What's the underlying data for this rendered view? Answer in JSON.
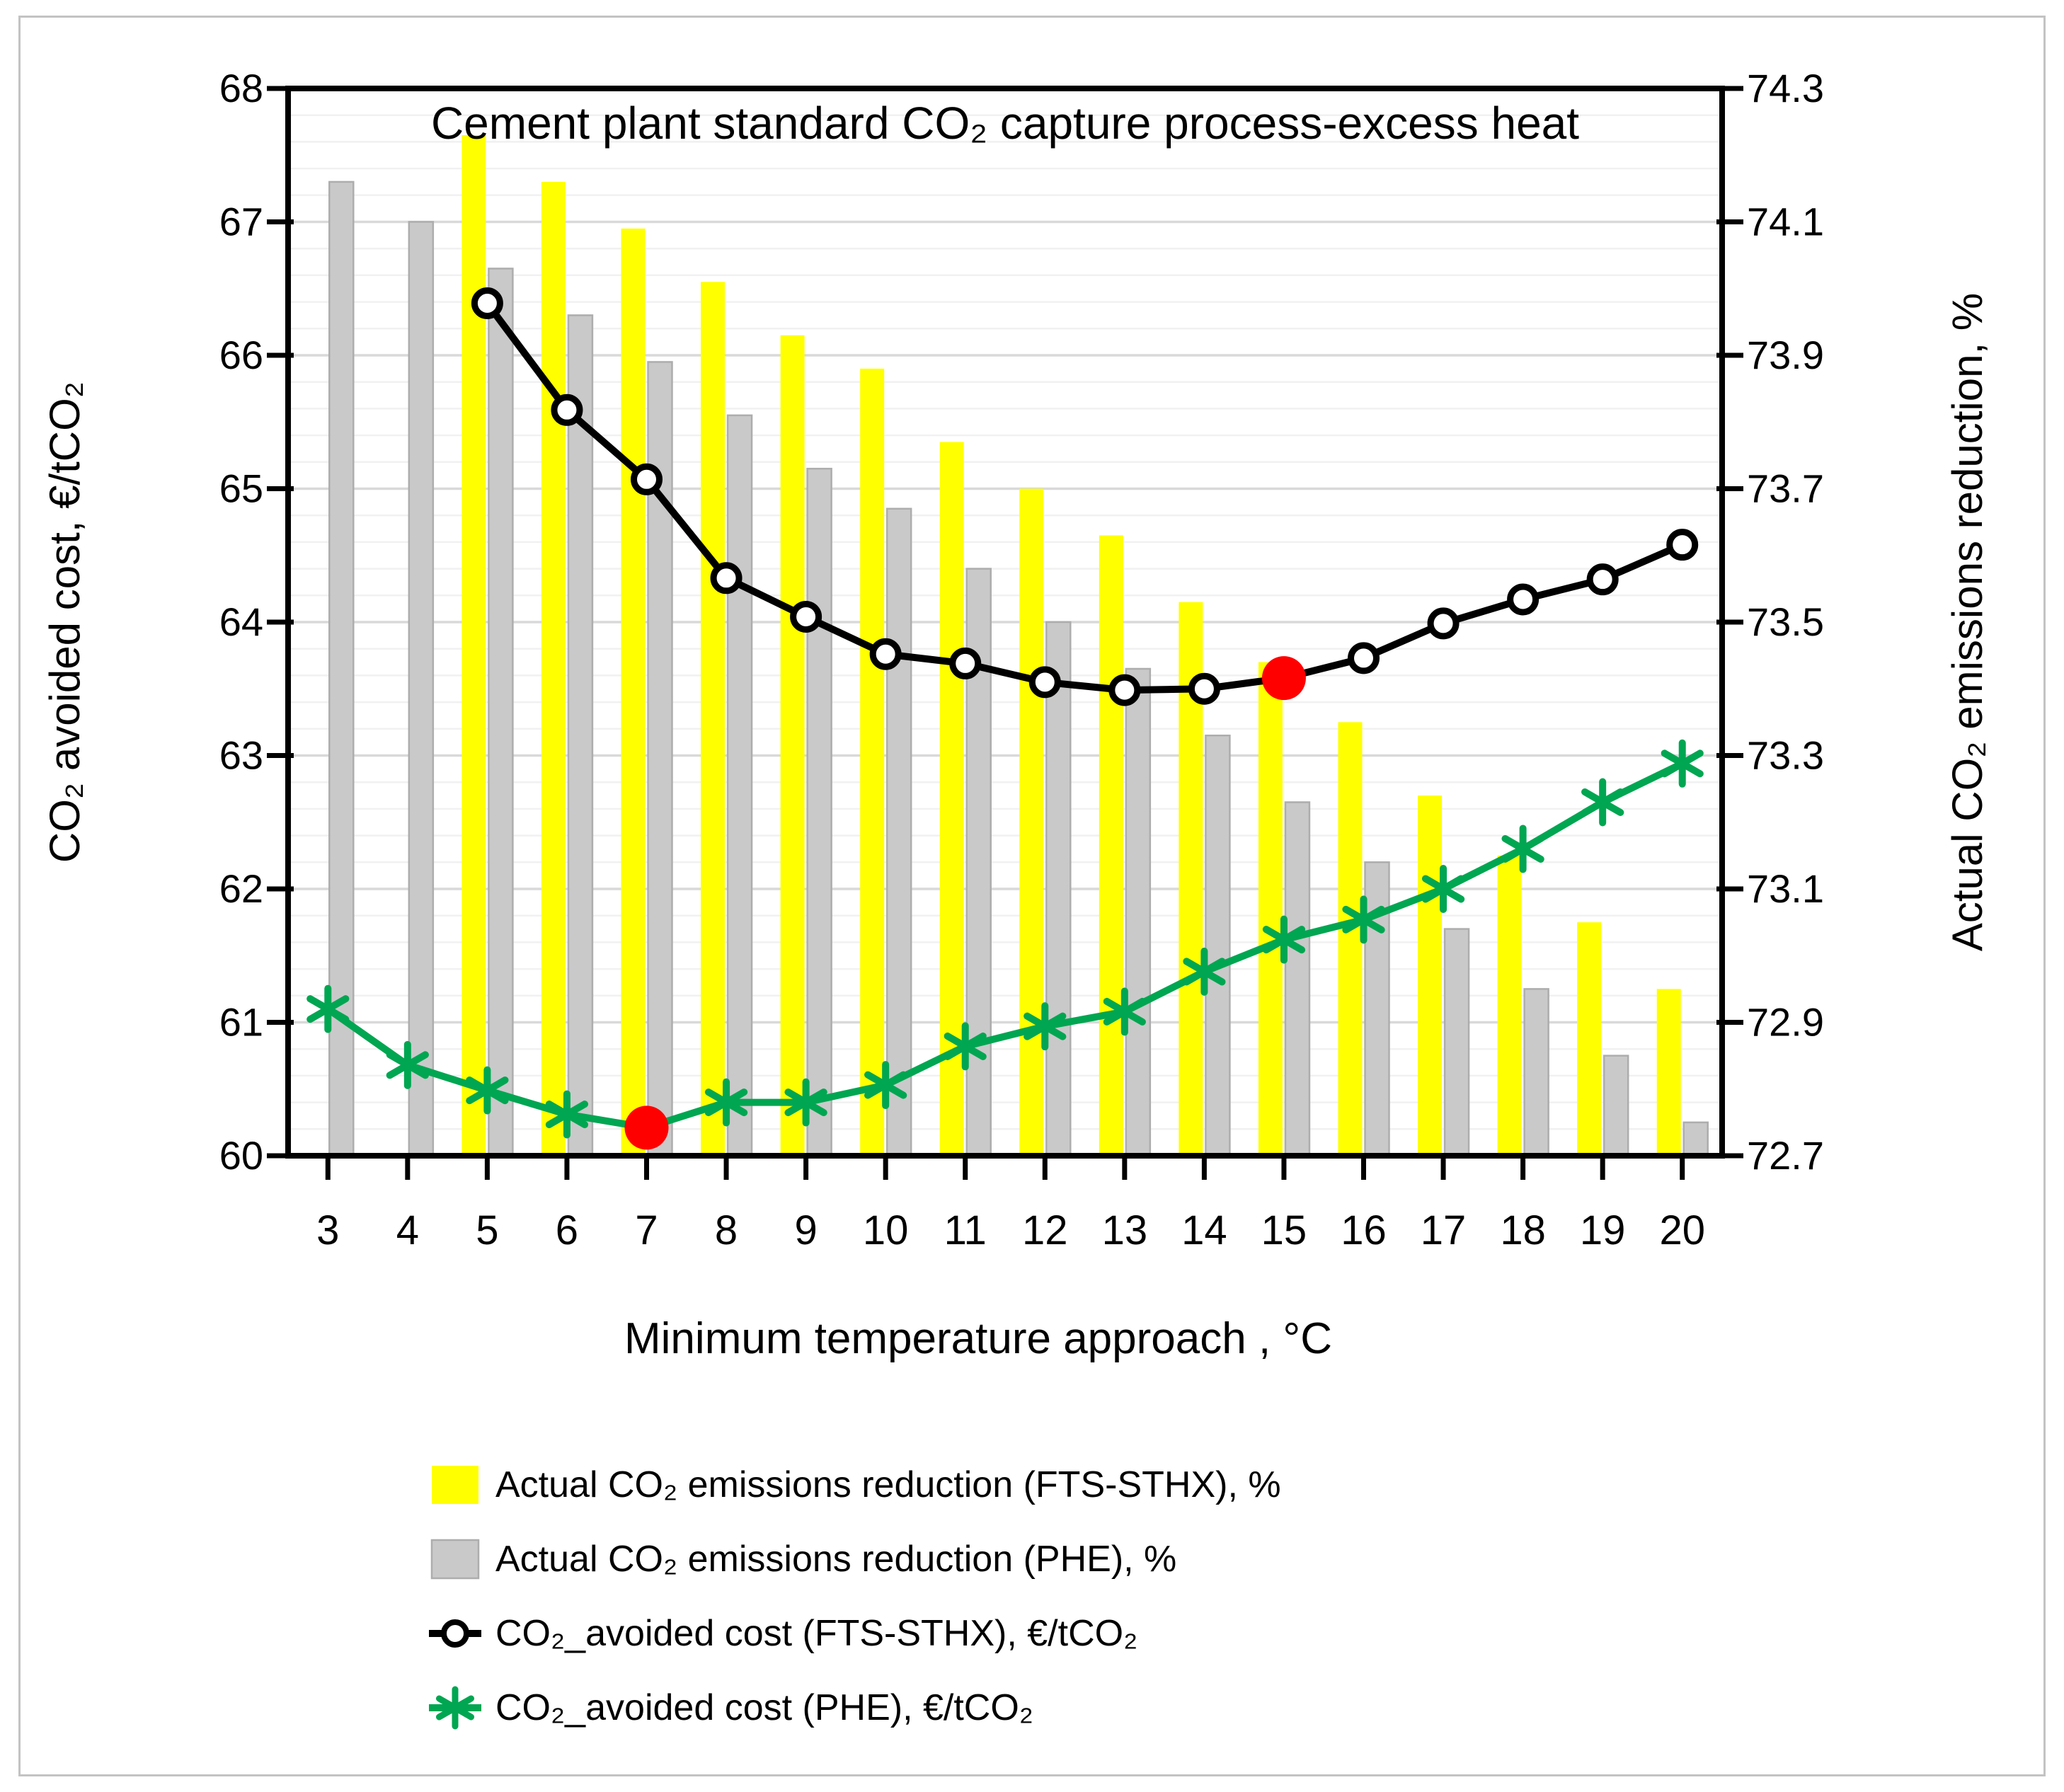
{
  "figure": {
    "title": "Cement plant standard CO₂ capture process-excess heat",
    "x_axis_title": "Minimum temperature approach , °C",
    "y_left_title": "CO₂ avoided cost, €/tCO₂",
    "y_right_title": "Actual CO₂ emissions reduction, %"
  },
  "chart_data": {
    "type": "combo-bar-line",
    "title": "Cement plant standard CO₂ capture process-excess heat",
    "xlabel": "Minimum temperature approach , °C",
    "categories": [
      3,
      4,
      5,
      6,
      7,
      8,
      9,
      10,
      11,
      12,
      13,
      14,
      15,
      16,
      17,
      18,
      19,
      20
    ],
    "y_left": {
      "label": "CO₂ avoided cost, €/tCO₂",
      "min": 60,
      "max": 68,
      "major_step": 1,
      "minor_step": 0.2,
      "tick_labels": [
        "68",
        "67",
        "66",
        "65",
        "64",
        "63",
        "62",
        "61",
        "60"
      ]
    },
    "y_right": {
      "label": "Actual CO₂ emissions reduction, %",
      "min": 72.7,
      "max": 74.3,
      "major_step": 0.2,
      "tick_labels": [
        "74.3",
        "74.1",
        "73.9",
        "73.7",
        "73.5",
        "73.3",
        "73.1",
        "72.9",
        "72.7"
      ]
    },
    "grid": {
      "major_color": "#d9d9d9",
      "minor_color": "#f1f1f1",
      "major_on": true,
      "minor_on": true
    },
    "series": [
      {
        "name": "Actual CO₂ emissions reduction (FTS-STHX), %",
        "type": "bar",
        "axis": "right",
        "color": "#ffff00",
        "stroke": "#ececec00",
        "values": [
          null,
          null,
          74.23,
          74.16,
          74.09,
          74.01,
          73.93,
          73.88,
          73.77,
          73.7,
          73.63,
          73.53,
          73.44,
          73.35,
          73.24,
          73.15,
          73.05,
          72.95
        ]
      },
      {
        "name": "Actual CO₂ emissions reduction (PHE), %",
        "type": "bar",
        "axis": "right",
        "color": "#c9c9c9",
        "stroke": "#adadad",
        "values": [
          74.16,
          74.1,
          74.03,
          73.96,
          73.89,
          73.81,
          73.73,
          73.67,
          73.58,
          73.5,
          73.43,
          73.33,
          73.23,
          73.14,
          73.04,
          72.95,
          72.85,
          72.75
        ]
      },
      {
        "name": "CO₂_avoided cost (FTS-STHX), €/tCO₂",
        "type": "line",
        "axis": "left",
        "color": "#000000",
        "marker": "circle",
        "highlight_index": 12,
        "values": [
          null,
          null,
          66.39,
          65.59,
          65.07,
          64.33,
          64.04,
          63.76,
          63.69,
          63.55,
          63.49,
          63.5,
          63.58,
          63.73,
          63.99,
          64.17,
          64.32,
          64.58
        ]
      },
      {
        "name": "CO₂_avoided cost (PHE), €/tCO₂",
        "type": "line",
        "axis": "left",
        "color": "#00a651",
        "marker": "asterisk",
        "highlight_index": 4,
        "values": [
          61.1,
          60.68,
          60.49,
          60.31,
          60.21,
          60.4,
          60.4,
          60.53,
          60.82,
          60.97,
          61.08,
          61.38,
          61.62,
          61.77,
          62.0,
          62.3,
          62.65,
          62.94
        ]
      }
    ],
    "highlight_color": "#ff0000",
    "legend_position": "bottom-left"
  },
  "legend": {
    "items": [
      {
        "swatch": "bar-yellow",
        "label": "Actual CO₂ emissions reduction (FTS-STHX), %"
      },
      {
        "swatch": "bar-gray",
        "label": "Actual CO₂ emissions reduction (PHE), %"
      },
      {
        "swatch": "line-circle",
        "label": "CO₂_avoided cost (FTS-STHX), €/tCO₂"
      },
      {
        "swatch": "line-asterisk",
        "label": "CO₂_avoided cost (PHE), €/tCO₂"
      }
    ]
  }
}
